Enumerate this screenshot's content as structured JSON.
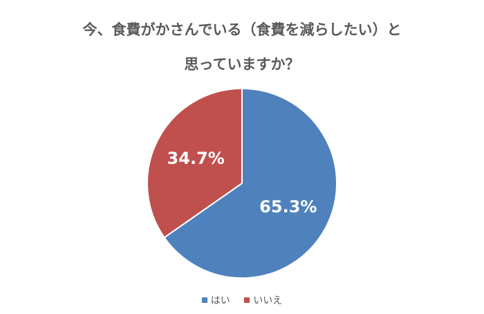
{
  "chart_data": {
    "type": "pie",
    "title_lines": [
      "今、食費がかさんでいる（食費を減らしたい）と",
      "思っていますか？"
    ],
    "categories": [
      "はい",
      "いいえ"
    ],
    "values": [
      65.3,
      34.7
    ],
    "labels": [
      "65.3%",
      "34.7%"
    ],
    "colors": [
      "#4f81bd",
      "#c0504d"
    ],
    "legend_position": "bottom"
  }
}
